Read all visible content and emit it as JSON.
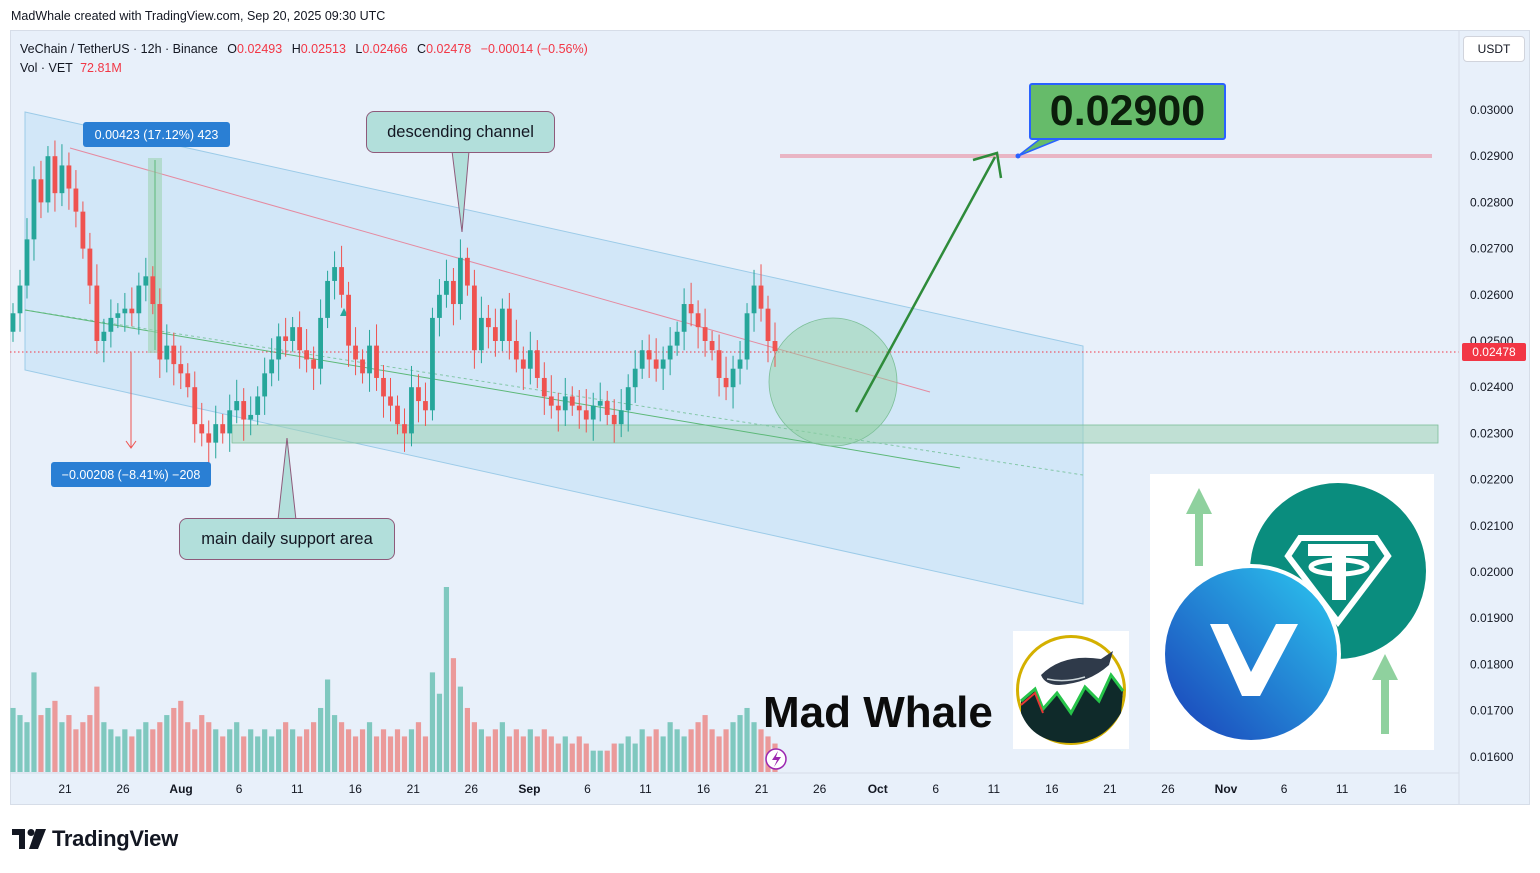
{
  "credit": "MadWhale created with TradingView.com, Sep 20, 2025 09:30 UTC",
  "legend": {
    "symbol": "VeChain / TetherUS · 12h · Binance",
    "o_label": "O",
    "o": "0.02493",
    "h_label": "H",
    "h": "0.02513",
    "l_label": "L",
    "l": "0.02466",
    "c_label": "C",
    "c": "0.02478",
    "change": "−0.00014 (−0.56%)",
    "vol_label": "Vol · VET",
    "vol": "72.81M"
  },
  "currency_button": "USDT",
  "current_price_tag": "0.02478",
  "target_label": "0.02900",
  "annotations": {
    "descending_channel": "descending channel",
    "support_area": "main daily support area",
    "measure_up": "0.00423 (17.12%) 423",
    "measure_down": "−0.00208 (−8.41%) −208"
  },
  "brand": {
    "mad_whale": "Mad Whale",
    "tradingview": "TradingView"
  },
  "colors": {
    "up": "#26a69a",
    "down": "#ef5350",
    "price_line": "#f23645",
    "channel": "#bfe0f5",
    "target_green": "#66bb6a",
    "arrow": "#2e8b3a"
  },
  "chart_data": {
    "type": "candlestick",
    "symbol": "VeChain / TetherUS",
    "timeframe": "12h",
    "exchange": "Binance",
    "y_axis_ticks": [
      "0.03000",
      "0.02900",
      "0.02800",
      "0.02700",
      "0.02600",
      "0.02500",
      "0.02400",
      "0.02300",
      "0.02200",
      "0.02100",
      "0.02000",
      "0.01900",
      "0.01800",
      "0.01700",
      "0.01600"
    ],
    "ylim": [
      0.0157,
      0.031
    ],
    "x_axis_ticks": [
      "21",
      "26",
      "Aug",
      "6",
      "11",
      "16",
      "21",
      "26",
      "Sep",
      "6",
      "11",
      "16",
      "21",
      "26",
      "Oct",
      "6",
      "11",
      "16",
      "21",
      "26",
      "Nov",
      "6",
      "11",
      "16"
    ],
    "bold_ticks": [
      "Aug",
      "Sep",
      "Oct",
      "Nov"
    ],
    "last_close": 0.02478,
    "target": 0.029,
    "support_zone": [
      0.0228,
      0.0232
    ],
    "closes": [
      0.0256,
      0.0262,
      0.0272,
      0.0285,
      0.028,
      0.029,
      0.0282,
      0.0288,
      0.0283,
      0.0278,
      0.027,
      0.0262,
      0.025,
      0.0252,
      0.0255,
      0.0256,
      0.0257,
      0.0256,
      0.0262,
      0.0264,
      0.0258,
      0.0246,
      0.0249,
      0.0245,
      0.0243,
      0.024,
      0.0232,
      0.023,
      0.0228,
      0.0232,
      0.023,
      0.0235,
      0.0237,
      0.0233,
      0.0234,
      0.0238,
      0.0243,
      0.0246,
      0.0251,
      0.025,
      0.0253,
      0.0248,
      0.0246,
      0.0244,
      0.0255,
      0.0263,
      0.0266,
      0.026,
      0.0249,
      0.0246,
      0.0243,
      0.0249,
      0.0242,
      0.0238,
      0.0236,
      0.0232,
      0.023,
      0.024,
      0.0237,
      0.0235,
      0.0255,
      0.026,
      0.0263,
      0.0258,
      0.0268,
      0.0262,
      0.0248,
      0.0255,
      0.0253,
      0.025,
      0.0257,
      0.025,
      0.0246,
      0.0244,
      0.0248,
      0.0242,
      0.0238,
      0.0236,
      0.0235,
      0.0238,
      0.0236,
      0.0235,
      0.0233,
      0.0236,
      0.0237,
      0.0234,
      0.0232,
      0.0235,
      0.024,
      0.0244,
      0.0248,
      0.0246,
      0.0244,
      0.0246,
      0.0249,
      0.0252,
      0.0258,
      0.0256,
      0.0253,
      0.025,
      0.0248,
      0.0242,
      0.024,
      0.0244,
      0.0246,
      0.0256,
      0.0262,
      0.0257,
      0.025,
      0.02478
    ],
    "volumes": [
      0.9,
      0.8,
      0.7,
      1.4,
      0.8,
      0.9,
      1.0,
      0.7,
      0.8,
      0.6,
      0.7,
      0.8,
      1.2,
      0.7,
      0.6,
      0.5,
      0.6,
      0.5,
      0.6,
      0.7,
      0.6,
      0.7,
      0.8,
      0.9,
      1.0,
      0.7,
      0.6,
      0.8,
      0.7,
      0.6,
      0.5,
      0.6,
      0.7,
      0.5,
      0.6,
      0.5,
      0.6,
      0.5,
      0.6,
      0.7,
      0.6,
      0.5,
      0.6,
      0.7,
      0.9,
      1.3,
      0.8,
      0.7,
      0.6,
      0.5,
      0.6,
      0.7,
      0.5,
      0.6,
      0.5,
      0.6,
      0.5,
      0.6,
      0.7,
      0.5,
      1.4,
      1.1,
      2.6,
      1.6,
      1.2,
      0.9,
      0.7,
      0.6,
      0.5,
      0.6,
      0.7,
      0.5,
      0.6,
      0.5,
      0.6,
      0.5,
      0.6,
      0.5,
      0.4,
      0.5,
      0.4,
      0.5,
      0.4,
      0.3,
      0.3,
      0.3,
      0.4,
      0.4,
      0.5,
      0.4,
      0.6,
      0.5,
      0.6,
      0.5,
      0.7,
      0.6,
      0.5,
      0.6,
      0.7,
      0.8,
      0.6,
      0.5,
      0.6,
      0.7,
      0.8,
      0.9,
      0.7,
      0.6,
      0.5,
      0.4
    ]
  }
}
